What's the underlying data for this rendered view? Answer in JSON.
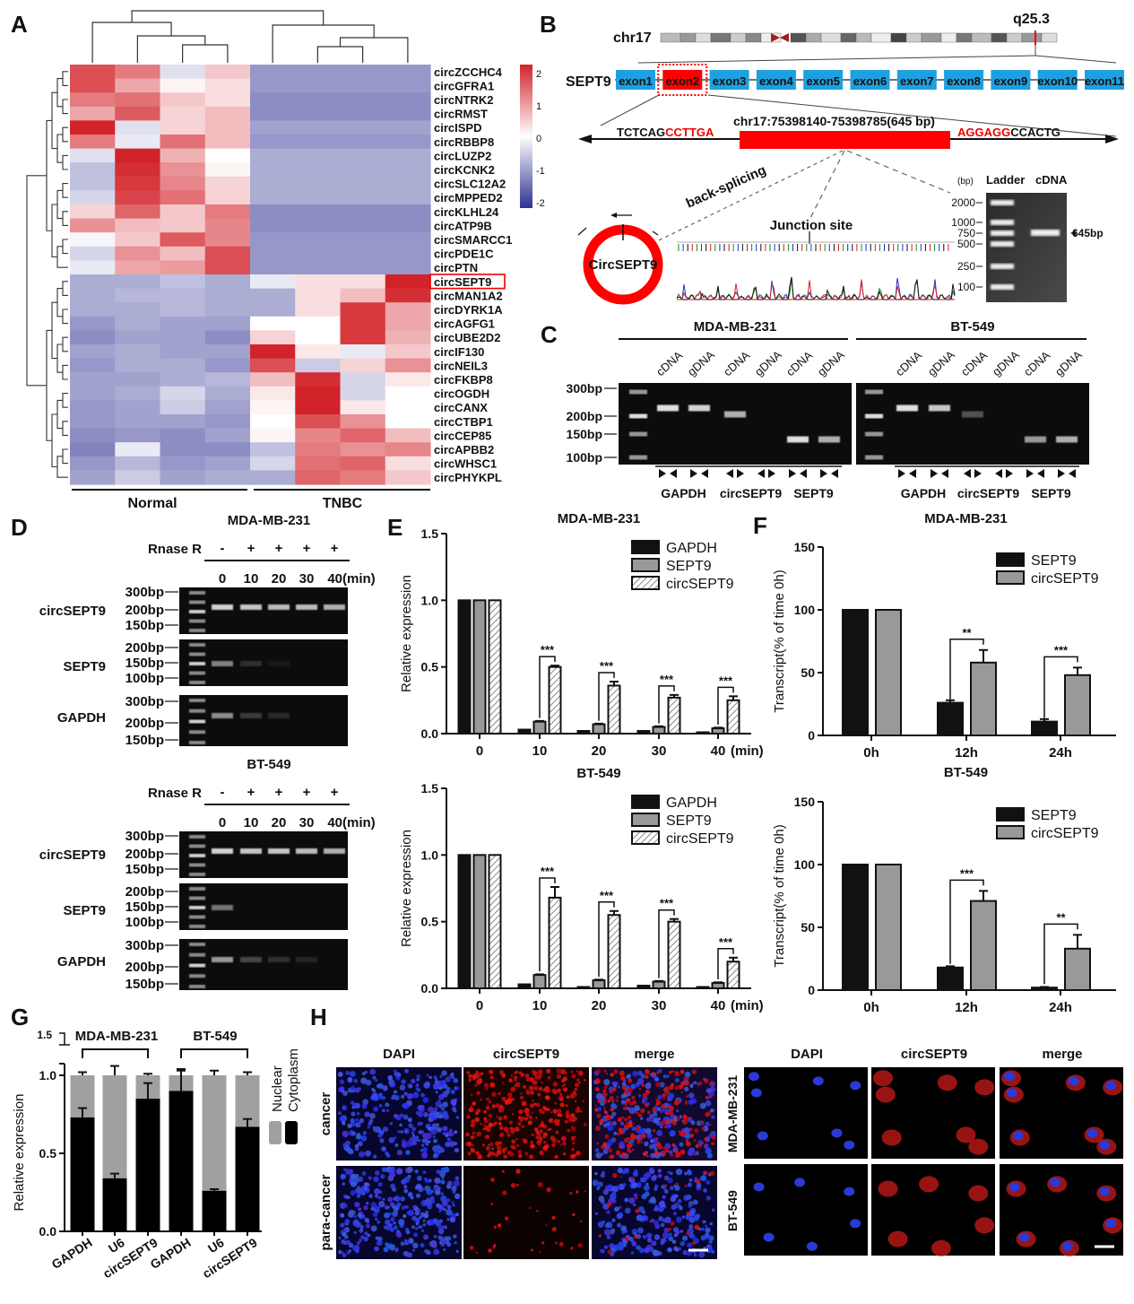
{
  "panel_labels": [
    "A",
    "B",
    "C",
    "D",
    "E",
    "F",
    "G",
    "H"
  ],
  "heatmap": {
    "row_labels": [
      "circZCCHC4",
      "circGFRA1",
      "circNTRK2",
      "circRMST",
      "circISPD",
      "circRBBP8",
      "circLUZP2",
      "circKCNK2",
      "circSLC12A2",
      "circMPPED2",
      "circKLHL24",
      "circATP9B",
      "circSMARCC1",
      "circPDE1C",
      "circPTN",
      "circSEPT9",
      "circMAN1A2",
      "circDYRK1A",
      "circAGFG1",
      "circUBE2D2",
      "circIF130",
      "circNEIL3",
      "circFKBP8",
      "circOGDH",
      "circCANX",
      "circCTBP1",
      "circCEP85",
      "circAPBB2",
      "circWHSC1",
      "circPHYKPL"
    ],
    "highlighted_row": 15,
    "groups": [
      "Normal",
      "TNBC"
    ],
    "colorbar_ticks": [
      "2",
      "1",
      "0",
      "-1",
      "-2"
    ],
    "colors": {
      "high": "#d2232a",
      "mid": "#ffffff",
      "low": "#2e3192"
    },
    "values": [
      [
        1.6,
        1.2,
        -0.3,
        0.5,
        -1,
        -1,
        -1,
        -1
      ],
      [
        1.6,
        0.8,
        0.1,
        0.3,
        -1,
        -1,
        -1,
        -1
      ],
      [
        1.2,
        1.3,
        0.5,
        0.3,
        -1.1,
        -1.1,
        -1.1,
        -1.1
      ],
      [
        0.8,
        1.5,
        0.4,
        0.6,
        -1.1,
        -1.1,
        -1.1,
        -1.1
      ],
      [
        2.0,
        -0.3,
        0.4,
        0.6,
        -0.9,
        -0.9,
        -0.9,
        -0.9
      ],
      [
        1.2,
        -0.2,
        1.3,
        0.6,
        -1,
        -1,
        -1,
        -1
      ],
      [
        -0.3,
        2.0,
        0.7,
        0.0,
        -0.8,
        -0.8,
        -0.8,
        -0.8
      ],
      [
        -0.6,
        1.9,
        1.0,
        0.1,
        -0.8,
        -0.8,
        -0.8,
        -0.8
      ],
      [
        -0.6,
        1.8,
        1.1,
        0.4,
        -0.8,
        -0.8,
        -0.8,
        -0.8
      ],
      [
        -0.4,
        1.7,
        1.3,
        0.4,
        -0.8,
        -0.8,
        -0.8,
        -0.8
      ],
      [
        0.4,
        1.4,
        0.5,
        1.2,
        -1.1,
        -1.1,
        -1.1,
        -1.1
      ],
      [
        1.0,
        0.6,
        0.5,
        1.1,
        -1.1,
        -1.1,
        -1.1,
        -1.1
      ],
      [
        -0.1,
        0.5,
        1.5,
        1.1,
        -1,
        -1,
        -1,
        -1
      ],
      [
        -0.4,
        1.0,
        0.6,
        1.6,
        -1,
        -1,
        -1,
        -1
      ],
      [
        -0.2,
        0.8,
        0.9,
        1.6,
        -1,
        -1,
        -1,
        -1
      ],
      [
        -0.8,
        -0.8,
        -0.6,
        -0.8,
        -0.2,
        0.3,
        0.3,
        2.0
      ],
      [
        -0.8,
        -0.7,
        -0.7,
        -0.8,
        -0.8,
        0.3,
        0.6,
        1.9
      ],
      [
        -0.8,
        -0.8,
        -0.7,
        -0.8,
        -0.8,
        0.3,
        1.8,
        0.8
      ],
      [
        -1.0,
        -0.8,
        -0.9,
        -0.9,
        0.0,
        0.0,
        1.8,
        0.8
      ],
      [
        -1.1,
        -0.9,
        -0.9,
        -1.1,
        0.4,
        0.0,
        1.8,
        0.7
      ],
      [
        -0.9,
        -0.8,
        -0.9,
        -0.9,
        2.0,
        0.2,
        -0.2,
        0.5
      ],
      [
        -1.0,
        -0.8,
        -0.8,
        -1.0,
        1.6,
        -0.5,
        0.4,
        1.0
      ],
      [
        -0.9,
        -0.9,
        -0.8,
        -0.7,
        0.6,
        1.9,
        -0.4,
        0.2
      ],
      [
        -0.9,
        -0.8,
        -0.4,
        -0.8,
        0.2,
        2.0,
        -0.4,
        0.0
      ],
      [
        -1.0,
        -0.9,
        -0.5,
        -0.9,
        0.1,
        2.0,
        0.2,
        0.0
      ],
      [
        -1.0,
        -0.9,
        -0.9,
        -1.0,
        0.0,
        1.6,
        1.0,
        0.0
      ],
      [
        -1.1,
        -1.0,
        -1.1,
        -0.9,
        0.1,
        1.1,
        1.4,
        0.6
      ],
      [
        -1.2,
        -0.2,
        -1.1,
        -1.1,
        -0.6,
        1.2,
        1.0,
        1.1
      ],
      [
        -1.0,
        -0.7,
        -1.0,
        -0.9,
        -0.4,
        1.3,
        1.4,
        0.3
      ],
      [
        -0.9,
        -0.5,
        -0.9,
        -0.8,
        -0.8,
        1.4,
        1.2,
        0.5
      ]
    ]
  },
  "panel_b": {
    "chromosome": "chr17",
    "band": "q25.3",
    "gene": "SEPT9",
    "exons": [
      "exon1",
      "exon2",
      "exon3",
      "exon4",
      "exon5",
      "exon6",
      "exon7",
      "exon8",
      "exon9",
      "exon10",
      "exon11"
    ],
    "highlighted_exon": 1,
    "left_seq_black": "TCTCAG",
    "left_seq_red": "CCTTGA",
    "coordinates": "chr17:75398140-75398785(645 bp)",
    "right_seq_red": "AGGAGG",
    "right_seq_black": "CCACTG",
    "back_splicing": "back-splicing",
    "circ_label": "CircSEPT9",
    "junction": "Junction site",
    "gel": {
      "unit": "(bp)",
      "lanes": [
        "Ladder",
        "cDNA"
      ],
      "ladder": [
        "2000",
        "1000",
        "750",
        "500",
        "250",
        "100"
      ],
      "product": "645bp"
    },
    "colors": {
      "exon": "#1ea0e0",
      "highlight": "#ff0000"
    }
  },
  "panel_c": {
    "cell_lines": [
      "MDA-MB-231",
      "BT-549"
    ],
    "lane_labels": [
      "cDNA",
      "gDNA",
      "cDNA",
      "gDNA",
      "cDNA",
      "gDNA"
    ],
    "markers": [
      "300bp",
      "200bp",
      "150bp",
      "100bp"
    ],
    "targets": [
      "GAPDH",
      "circSEPT9",
      "SEPT9"
    ],
    "band_intensity": [
      [
        0.9,
        0.85,
        0.7,
        0,
        0.9,
        0.7
      ],
      [
        0.9,
        0.8,
        0.3,
        0,
        0.6,
        0.7
      ]
    ]
  },
  "panel_d": {
    "sections": [
      {
        "title": "MDA-MB-231",
        "band_intensity": [
          [
            0.85,
            0.8,
            0.75,
            0.75,
            0.7
          ],
          [
            0.5,
            0.15,
            0.06,
            0,
            0
          ],
          [
            0.55,
            0.2,
            0.12,
            0,
            0
          ]
        ]
      },
      {
        "title": "BT-549",
        "band_intensity": [
          [
            0.85,
            0.8,
            0.8,
            0.75,
            0.7
          ],
          [
            0.45,
            0,
            0,
            0,
            0
          ],
          [
            0.6,
            0.25,
            0.15,
            0.1,
            0
          ]
        ]
      }
    ],
    "rnase_label": "Rnase R",
    "treatment": [
      "-",
      "+",
      "+",
      "+",
      "+"
    ],
    "times": [
      "0",
      "10",
      "20",
      "30",
      "40(min)"
    ],
    "rows": [
      {
        "label": "circSEPT9",
        "markers": [
          "300bp",
          "200bp",
          "150bp"
        ]
      },
      {
        "label": "SEPT9",
        "markers": [
          "200bp",
          "150bp",
          "100bp"
        ]
      },
      {
        "label": "GAPDH",
        "markers": [
          "300bp",
          "200bp",
          "150bp"
        ]
      }
    ]
  },
  "chart_data": [
    {
      "type": "bar",
      "panel": "E",
      "title": "MDA-MB-231",
      "xlabel": "",
      "x_unit": "(min)",
      "ylabel": "Relative expression",
      "ylim": [
        0,
        1.5
      ],
      "yticks": [
        "0.0",
        "0.5",
        "1.0",
        "1.5"
      ],
      "categories": [
        "0",
        "10",
        "20",
        "30",
        "40"
      ],
      "series": [
        {
          "name": "GAPDH",
          "values": [
            1.0,
            0.03,
            0.02,
            0.02,
            0.01
          ],
          "errors": [
            0,
            0,
            0,
            0,
            0
          ]
        },
        {
          "name": "SEPT9",
          "values": [
            1.0,
            0.09,
            0.07,
            0.05,
            0.04
          ],
          "errors": [
            0,
            0.005,
            0.005,
            0.005,
            0.005
          ]
        },
        {
          "name": "circSEPT9",
          "values": [
            1.0,
            0.5,
            0.36,
            0.27,
            0.25
          ],
          "errors": [
            0,
            0.01,
            0.03,
            0.02,
            0.03
          ]
        }
      ],
      "significance": [
        "",
        "***",
        "***",
        "***",
        "***"
      ],
      "legend": "top-right"
    },
    {
      "type": "bar",
      "panel": "E",
      "title": "BT-549",
      "xlabel": "",
      "x_unit": "(min)",
      "ylabel": "Relative expression",
      "ylim": [
        0,
        1.5
      ],
      "yticks": [
        "0.0",
        "0.5",
        "1.0",
        "1.5"
      ],
      "categories": [
        "0",
        "10",
        "20",
        "30",
        "40"
      ],
      "series": [
        {
          "name": "GAPDH",
          "values": [
            1.0,
            0.03,
            0.01,
            0.02,
            0.01
          ],
          "errors": [
            0,
            0,
            0,
            0,
            0
          ]
        },
        {
          "name": "SEPT9",
          "values": [
            1.0,
            0.1,
            0.06,
            0.05,
            0.04
          ],
          "errors": [
            0,
            0.005,
            0.005,
            0.005,
            0.005
          ]
        },
        {
          "name": "circSEPT9",
          "values": [
            1.0,
            0.68,
            0.55,
            0.5,
            0.2
          ],
          "errors": [
            0,
            0.08,
            0.03,
            0.02,
            0.03
          ]
        }
      ],
      "significance": [
        "",
        "***",
        "***",
        "***",
        "***"
      ],
      "legend": "top-right"
    },
    {
      "type": "bar",
      "panel": "F",
      "title": "MDA-MB-231",
      "xlabel": "",
      "ylabel": "Transcript(% of time 0h)",
      "ylim": [
        0,
        150
      ],
      "yticks": [
        "0",
        "50",
        "100",
        "150"
      ],
      "categories": [
        "0h",
        "12h",
        "24h"
      ],
      "series": [
        {
          "name": "SEPT9",
          "values": [
            100,
            26,
            11
          ],
          "errors": [
            0,
            2,
            2
          ]
        },
        {
          "name": "circSEPT9",
          "values": [
            100,
            58,
            48
          ],
          "errors": [
            0,
            10,
            6
          ]
        }
      ],
      "significance": [
        "",
        "**",
        "***"
      ],
      "legend": "top-right"
    },
    {
      "type": "bar",
      "panel": "F",
      "title": "BT-549",
      "xlabel": "",
      "ylabel": "Transcript(% of time 0h)",
      "ylim": [
        0,
        150
      ],
      "yticks": [
        "0",
        "50",
        "100",
        "150"
      ],
      "categories": [
        "0h",
        "12h",
        "24h"
      ],
      "series": [
        {
          "name": "SEPT9",
          "values": [
            100,
            18,
            2
          ],
          "errors": [
            0,
            1,
            0.5
          ]
        },
        {
          "name": "circSEPT9",
          "values": [
            100,
            71,
            33
          ],
          "errors": [
            0,
            8,
            11
          ]
        }
      ],
      "significance": [
        "",
        "***",
        "**"
      ],
      "legend": "top-right"
    },
    {
      "type": "bar",
      "stacked": true,
      "panel": "G",
      "ylabel": "Relative expression",
      "ylim": [
        0,
        1.5
      ],
      "yticks": [
        "0.0",
        "0.5",
        "1.0",
        "1.5"
      ],
      "groups": [
        "MDA-MB-231",
        "BT-549"
      ],
      "categories": [
        "GAPDH",
        "U6",
        "circSEPT9",
        "GAPDH",
        "U6",
        "circSEPT9"
      ],
      "series": [
        {
          "name": "Cytoplasm",
          "values": [
            0.73,
            0.34,
            0.85,
            0.9,
            0.26,
            0.67
          ],
          "errors": [
            0.06,
            0.03,
            0.1,
            0.13,
            0.01,
            0.05
          ]
        },
        {
          "name": "Nuclear",
          "values": [
            0.27,
            0.66,
            0.15,
            0.1,
            0.74,
            0.33
          ],
          "errors": [
            0.02,
            0.06,
            0.01,
            0.04,
            0.03,
            0.02
          ]
        }
      ],
      "legend": "right"
    }
  ],
  "panel_h": {
    "tissue": {
      "headers": [
        "DAPI",
        "circSEPT9",
        "merge"
      ],
      "rows": [
        "cancer",
        "para-cancer"
      ]
    },
    "cells": {
      "headers": [
        "DAPI",
        "circSEPT9",
        "merge"
      ],
      "rows": [
        "MDA-MB-231",
        "BT-549"
      ]
    }
  }
}
